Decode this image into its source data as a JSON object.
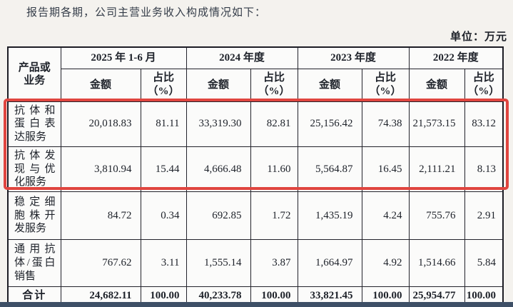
{
  "page": {
    "intro_text": "报告期各期，公司主营业务收入构成情况如下：",
    "unit_label": "单位：万元"
  },
  "table": {
    "corner_header": "产品或\n业务",
    "period_headers": [
      "2025 年 1-6 月",
      "2024 年度",
      "2023 年度",
      "2022 年度"
    ],
    "amount_header": "金额",
    "pct_header": "占比\n（%）",
    "rows": [
      {
        "label": "抗体和蛋白表达服务",
        "highlighted": true,
        "values": [
          "20,018.83",
          "81.11",
          "33,319.30",
          "82.81",
          "25,156.42",
          "74.38",
          "21,573.15",
          "83.12"
        ]
      },
      {
        "label": "抗体发现与优化服务",
        "highlighted": true,
        "values": [
          "3,810.94",
          "15.44",
          "4,666.48",
          "11.60",
          "5,564.87",
          "16.45",
          "2,111.21",
          "8.13"
        ]
      },
      {
        "label": "稳定细胞株开发服务",
        "highlighted": false,
        "values": [
          "84.72",
          "0.34",
          "692.85",
          "1.72",
          "1,435.19",
          "4.24",
          "755.76",
          "2.91"
        ]
      },
      {
        "label": "通用抗体/蛋白销售",
        "highlighted": false,
        "values": [
          "767.62",
          "3.11",
          "1,555.14",
          "3.87",
          "1,664.97",
          "4.92",
          "1,514.66",
          "5.84"
        ]
      }
    ],
    "total_row": {
      "label": "合计",
      "values": [
        "24,682.11",
        "100.00",
        "40,233.78",
        "100.00",
        "33,821.45",
        "100.00",
        "25,954.77",
        "100.00"
      ]
    }
  },
  "annotation": {
    "highlight_color": "#e0453f",
    "bottom_bar_color": "#3d4f66"
  }
}
